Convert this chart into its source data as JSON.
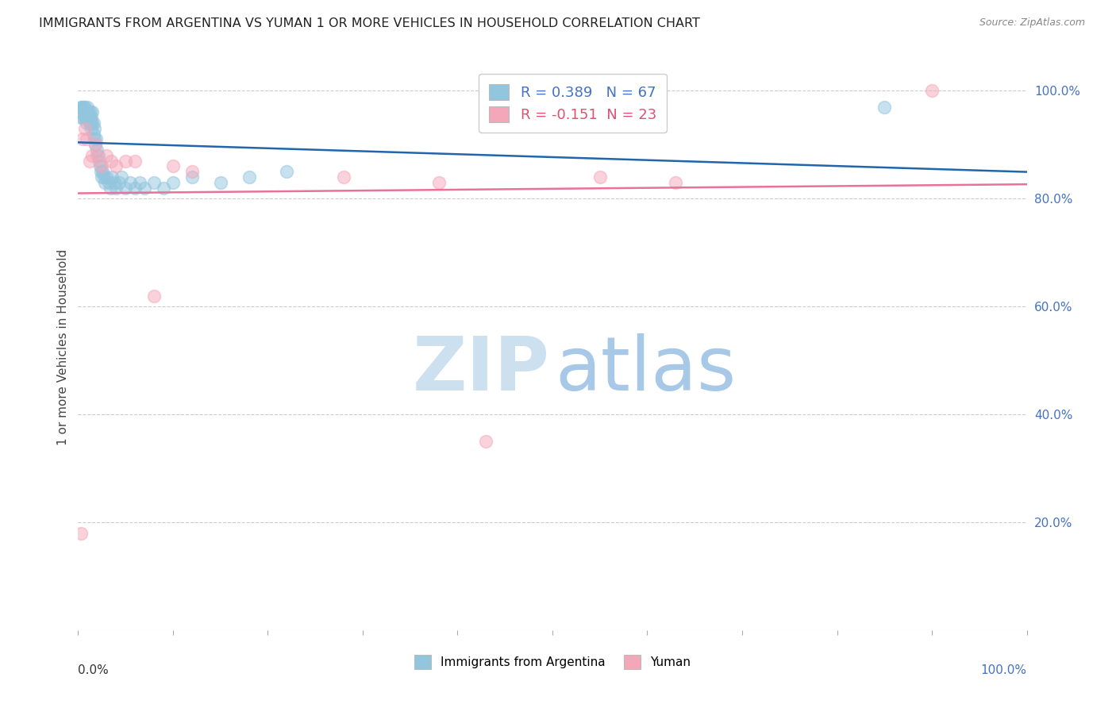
{
  "title": "IMMIGRANTS FROM ARGENTINA VS YUMAN 1 OR MORE VEHICLES IN HOUSEHOLD CORRELATION CHART",
  "source": "Source: ZipAtlas.com",
  "ylabel": "1 or more Vehicles in Household",
  "xlim": [
    0.0,
    1.0
  ],
  "ylim": [
    0.0,
    1.05
  ],
  "R1": 0.389,
  "N1": 67,
  "R2": -0.151,
  "N2": 23,
  "blue_color": "#92c5de",
  "pink_color": "#f4a7b9",
  "blue_line_color": "#2166ac",
  "pink_line_color": "#e8729a",
  "legend_label1": "Immigrants from Argentina",
  "legend_label2": "Yuman",
  "blue_points_x": [
    0.002,
    0.003,
    0.003,
    0.004,
    0.004,
    0.005,
    0.005,
    0.005,
    0.006,
    0.006,
    0.007,
    0.007,
    0.007,
    0.008,
    0.008,
    0.008,
    0.009,
    0.009,
    0.01,
    0.01,
    0.01,
    0.011,
    0.011,
    0.012,
    0.012,
    0.013,
    0.013,
    0.014,
    0.014,
    0.015,
    0.015,
    0.016,
    0.016,
    0.017,
    0.017,
    0.018,
    0.019,
    0.02,
    0.021,
    0.022,
    0.023,
    0.024,
    0.025,
    0.026,
    0.027,
    0.028,
    0.03,
    0.032,
    0.034,
    0.036,
    0.038,
    0.04,
    0.043,
    0.046,
    0.05,
    0.055,
    0.06,
    0.065,
    0.07,
    0.08,
    0.09,
    0.1,
    0.12,
    0.15,
    0.18,
    0.22,
    0.85
  ],
  "blue_points_y": [
    0.96,
    0.97,
    0.95,
    0.96,
    0.97,
    0.97,
    0.96,
    0.95,
    0.97,
    0.96,
    0.96,
    0.95,
    0.97,
    0.96,
    0.95,
    0.96,
    0.94,
    0.95,
    0.95,
    0.96,
    0.97,
    0.95,
    0.96,
    0.94,
    0.95,
    0.94,
    0.96,
    0.93,
    0.95,
    0.94,
    0.96,
    0.92,
    0.94,
    0.91,
    0.93,
    0.9,
    0.91,
    0.89,
    0.88,
    0.87,
    0.86,
    0.85,
    0.84,
    0.85,
    0.84,
    0.83,
    0.84,
    0.83,
    0.82,
    0.84,
    0.83,
    0.82,
    0.83,
    0.84,
    0.82,
    0.83,
    0.82,
    0.83,
    0.82,
    0.83,
    0.82,
    0.83,
    0.84,
    0.83,
    0.84,
    0.85,
    0.97
  ],
  "pink_points_x": [
    0.003,
    0.005,
    0.007,
    0.009,
    0.012,
    0.015,
    0.018,
    0.02,
    0.025,
    0.03,
    0.035,
    0.04,
    0.05,
    0.06,
    0.08,
    0.1,
    0.12,
    0.28,
    0.38,
    0.43,
    0.55,
    0.63,
    0.9
  ],
  "pink_points_y": [
    0.18,
    0.91,
    0.93,
    0.91,
    0.87,
    0.88,
    0.9,
    0.88,
    0.86,
    0.88,
    0.87,
    0.86,
    0.87,
    0.87,
    0.62,
    0.86,
    0.85,
    0.84,
    0.83,
    0.35,
    0.84,
    0.83,
    1.0
  ],
  "ytick_positions": [
    0.0,
    0.2,
    0.4,
    0.6,
    0.8,
    1.0
  ],
  "ytick_labels_right": [
    "",
    "20.0%",
    "40.0%",
    "60.0%",
    "80.0%",
    "100.0%"
  ],
  "xtick_positions": [
    0.0,
    0.1,
    0.2,
    0.3,
    0.4,
    0.5,
    0.6,
    0.7,
    0.8,
    0.9,
    1.0
  ],
  "right_tick_color": "#4472c4",
  "grid_color": "#cccccc",
  "watermark_zip_color": "#cce0f0",
  "watermark_atlas_color": "#a8c8e8"
}
